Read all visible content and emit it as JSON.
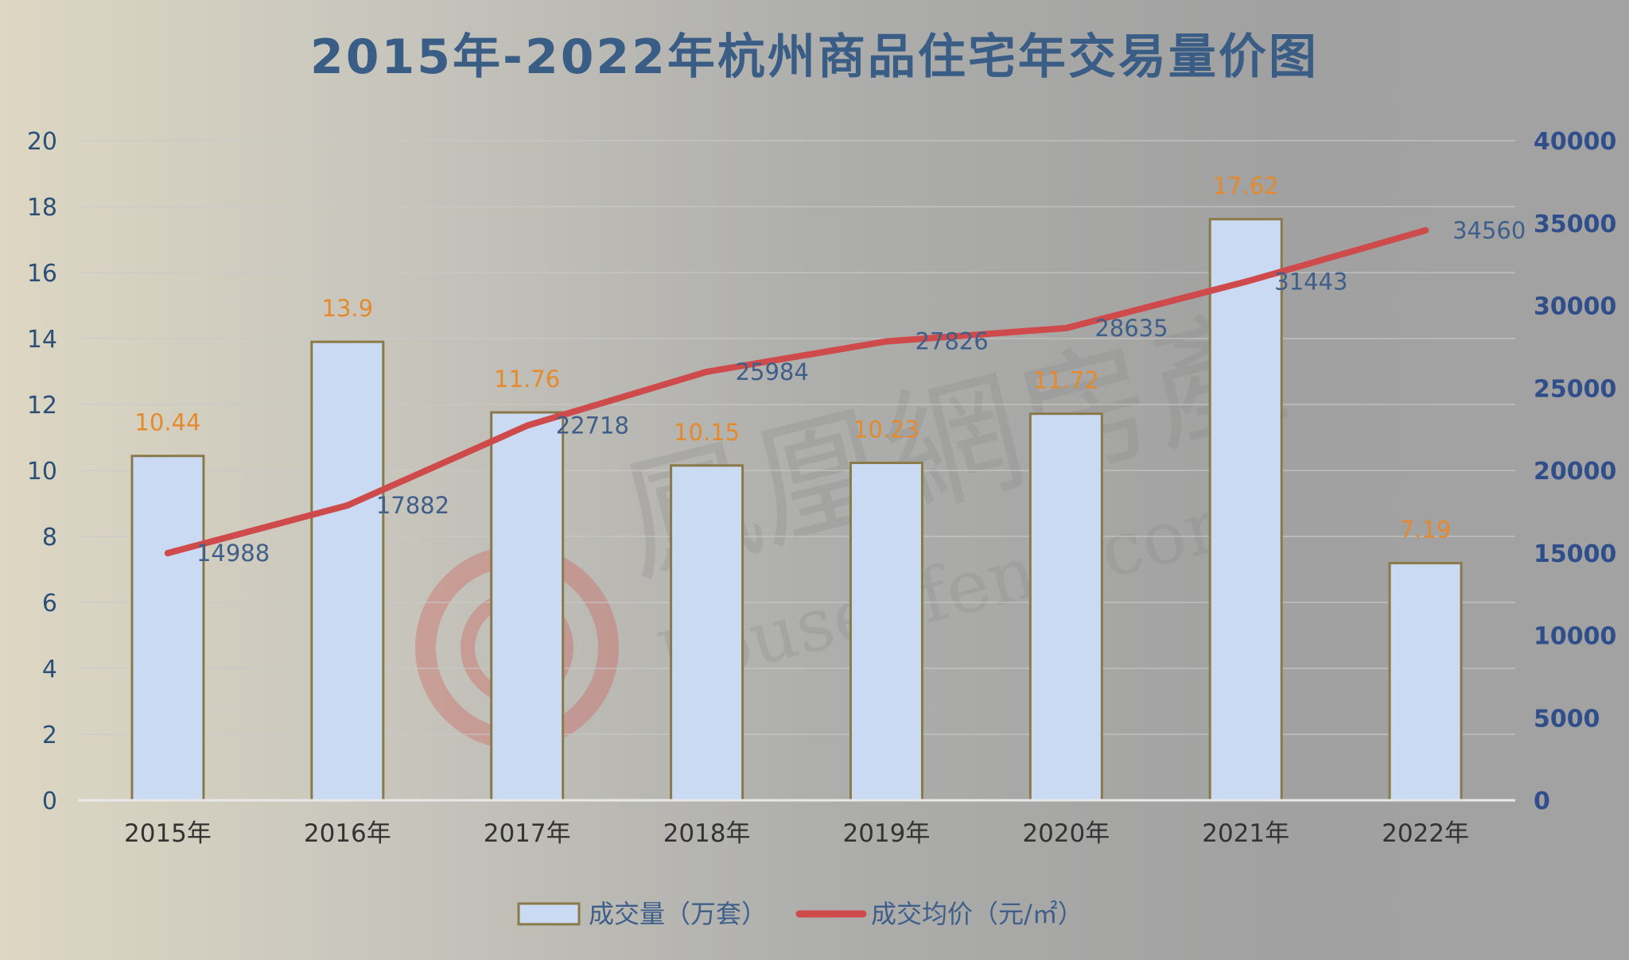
{
  "chart_data": {
    "type": "bar",
    "title": "2015年-2022年杭州商品住宅年交易量价图",
    "categories": [
      "2015年",
      "2016年",
      "2017年",
      "2018年",
      "2019年",
      "2020年",
      "2021年",
      "2022年"
    ],
    "series": [
      {
        "name": "成交量（万套）",
        "type": "bar",
        "axis": "left",
        "values": [
          10.44,
          13.9,
          11.76,
          10.15,
          10.23,
          11.72,
          17.62,
          7.19
        ],
        "labels": [
          "10.44",
          "13.9",
          "11.76",
          "10.15",
          "10.23",
          "11.72",
          "17.62",
          "7.19"
        ]
      },
      {
        "name": "成交均价（元/㎡）",
        "type": "line",
        "axis": "right",
        "values": [
          14988,
          17882,
          22718,
          25984,
          27826,
          28635,
          31443,
          34560
        ],
        "labels": [
          "14988",
          "17882",
          "22718",
          "25984",
          "27826",
          "28635",
          "31443",
          "34560"
        ]
      }
    ],
    "y_left": {
      "min": 0,
      "max": 20,
      "step": 2,
      "ticks": [
        "0",
        "2",
        "4",
        "6",
        "8",
        "10",
        "12",
        "14",
        "16",
        "18",
        "20"
      ]
    },
    "y_right": {
      "min": 0,
      "max": 40000,
      "step": 5000,
      "ticks": [
        "0",
        "5000",
        "10000",
        "15000",
        "20000",
        "25000",
        "30000",
        "35000",
        "40000"
      ]
    },
    "grid": true,
    "legend_position": "bottom",
    "colors": {
      "bar_fill": "#c9daf2",
      "bar_stroke": "#8a7a4a",
      "line": "#cf4a4a",
      "bar_label": "#e58a2c",
      "line_label": "#3f5f8a"
    }
  },
  "watermark": {
    "text_cn": "鳳凰網房產",
    "text_en": "house.ifeng.com"
  }
}
